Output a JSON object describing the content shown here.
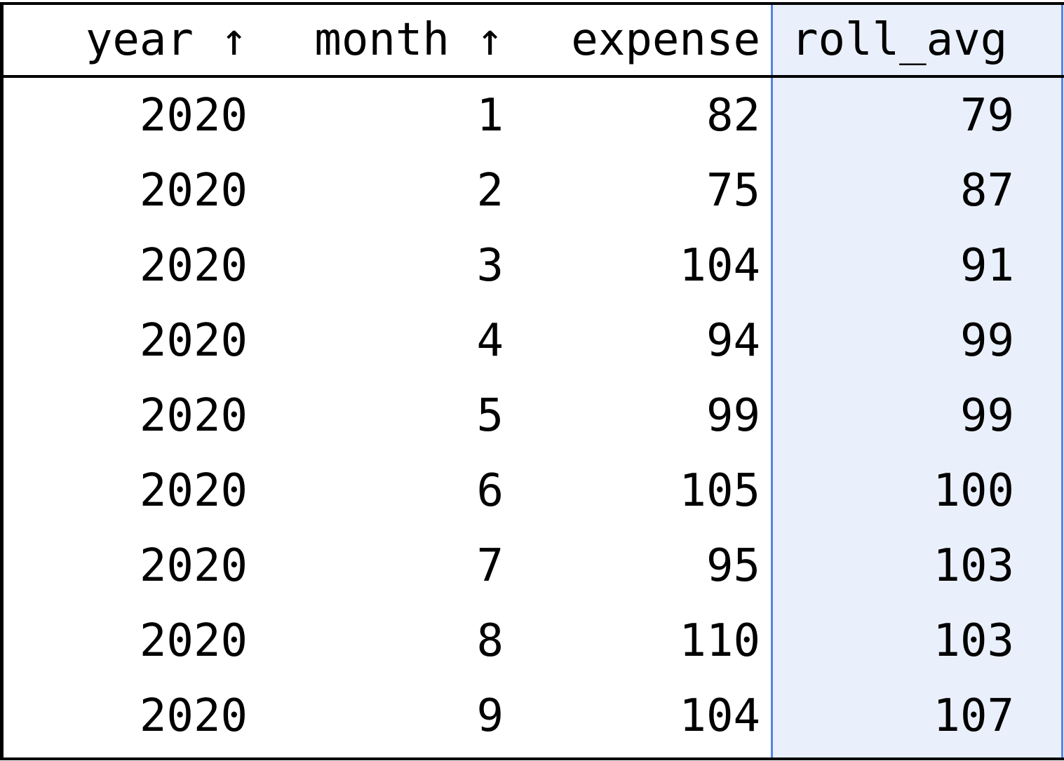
{
  "table": {
    "columns": [
      {
        "label": "year",
        "sort_icon": "arrow-up-icon",
        "sort_glyph": "↑"
      },
      {
        "label": "month",
        "sort_icon": "arrow-up-icon",
        "sort_glyph": "↑"
      },
      {
        "label": "expense"
      },
      {
        "label": "roll_avg",
        "selected": true
      }
    ],
    "selected_column_colors": {
      "border": "#5584e8",
      "background": "#e9f0fb"
    },
    "rows": [
      [
        "2020",
        "1",
        "82",
        "79"
      ],
      [
        "2020",
        "2",
        "75",
        "87"
      ],
      [
        "2020",
        "3",
        "104",
        "91"
      ],
      [
        "2020",
        "4",
        "94",
        "99"
      ],
      [
        "2020",
        "5",
        "99",
        "99"
      ],
      [
        "2020",
        "6",
        "105",
        "100"
      ],
      [
        "2020",
        "7",
        "95",
        "103"
      ],
      [
        "2020",
        "8",
        "110",
        "103"
      ],
      [
        "2020",
        "9",
        "104",
        "107"
      ]
    ]
  }
}
